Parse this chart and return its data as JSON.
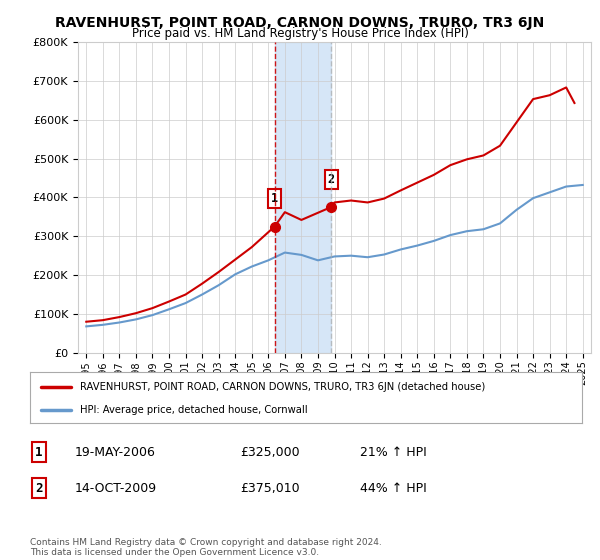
{
  "title": "RAVENHURST, POINT ROAD, CARNON DOWNS, TRURO, TR3 6JN",
  "subtitle": "Price paid vs. HM Land Registry's House Price Index (HPI)",
  "legend_line1": "RAVENHURST, POINT ROAD, CARNON DOWNS, TRURO, TR3 6JN (detached house)",
  "legend_line2": "HPI: Average price, detached house, Cornwall",
  "sale1_label": "1",
  "sale1_date": "19-MAY-2006",
  "sale1_price": "£325,000",
  "sale1_hpi": "21% ↑ HPI",
  "sale2_label": "2",
  "sale2_date": "14-OCT-2009",
  "sale2_price": "£375,010",
  "sale2_hpi": "44% ↑ HPI",
  "footer": "Contains HM Land Registry data © Crown copyright and database right 2024.\nThis data is licensed under the Open Government Licence v3.0.",
  "ylim": [
    0,
    800000
  ],
  "yticks": [
    0,
    100000,
    200000,
    300000,
    400000,
    500000,
    600000,
    700000,
    800000
  ],
  "hpi_color": "#6699cc",
  "price_color": "#cc0000",
  "shade_color": "#cce0f5",
  "vline1_color": "#cc0000",
  "vline2_color": "#aaaaaa",
  "sale1_year": 2006.38,
  "sale2_year": 2009.79,
  "sale1_price_val": 325000,
  "sale2_price_val": 375010,
  "xmin": 1995,
  "xmax": 2025,
  "years_hpi": [
    1995,
    1996,
    1997,
    1998,
    1999,
    2000,
    2001,
    2002,
    2003,
    2004,
    2005,
    2006,
    2007,
    2008,
    2009,
    2010,
    2011,
    2012,
    2013,
    2014,
    2015,
    2016,
    2017,
    2018,
    2019,
    2020,
    2021,
    2022,
    2023,
    2024,
    2025
  ],
  "hpi_values": [
    68000,
    72000,
    78000,
    86000,
    97000,
    112000,
    128000,
    150000,
    174000,
    202000,
    222000,
    238000,
    258000,
    252000,
    238000,
    248000,
    250000,
    246000,
    253000,
    266000,
    276000,
    288000,
    303000,
    313000,
    318000,
    333000,
    368000,
    398000,
    413000,
    428000,
    432000
  ],
  "price_years": [
    1995,
    1996,
    1997,
    1998,
    1999,
    2000,
    2001,
    2002,
    2003,
    2004,
    2005,
    2006.38,
    2007,
    2008,
    2009.79,
    2010,
    2011,
    2012,
    2013,
    2014,
    2015,
    2016,
    2017,
    2018,
    2019,
    2020,
    2021,
    2022,
    2023,
    2024,
    2024.5
  ],
  "price_values": [
    80000,
    84000,
    92000,
    102000,
    115000,
    132000,
    150000,
    178000,
    208000,
    240000,
    272000,
    325000,
    362000,
    342000,
    375010,
    387000,
    392000,
    387000,
    397000,
    418000,
    438000,
    458000,
    483000,
    498000,
    508000,
    533000,
    593000,
    653000,
    663000,
    683000,
    643000
  ]
}
